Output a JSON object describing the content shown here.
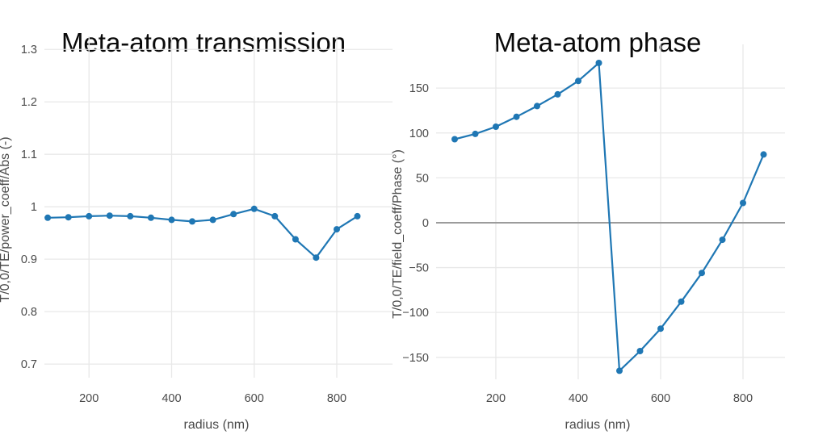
{
  "figure": {
    "background": "#ffffff"
  },
  "colors": {
    "line": "#1f77b4",
    "grid": "#e8e8e8",
    "zeroline": "#9c9c9c",
    "tick_text": "#4a4a4a",
    "axis_label_text": "#4a4a4a",
    "title_text": "#0a0a0a"
  },
  "chart_data": [
    {
      "type": "line",
      "title": "Meta-atom transmission",
      "xlabel": "radius (nm)",
      "ylabel": "T/0,0/TE/power_coeff/Abs (-)",
      "legend": "none",
      "grid": true,
      "markers": true,
      "zeroline": false,
      "line_color": "#1f77b4",
      "x": [
        100,
        150,
        200,
        250,
        300,
        350,
        400,
        450,
        500,
        550,
        600,
        650,
        700,
        750,
        800,
        850
      ],
      "y": [
        0.979,
        0.98,
        0.982,
        0.983,
        0.982,
        0.979,
        0.975,
        0.972,
        0.975,
        0.986,
        0.996,
        0.982,
        0.938,
        0.903,
        0.957,
        0.982
      ],
      "xlim": [
        92,
        935
      ],
      "ylim": [
        0.674,
        1.325
      ],
      "xticks": {
        "values": [
          200,
          400,
          600,
          800
        ],
        "labels": [
          "200",
          "400",
          "600",
          "800"
        ]
      },
      "yticks": {
        "values": [
          0.7,
          0.8,
          0.9,
          1,
          1.1,
          1.2,
          1.3
        ],
        "labels": [
          "0.7",
          "0.8",
          "0.9",
          "1",
          "1.1",
          "1.2",
          "1.3"
        ]
      }
    },
    {
      "type": "line",
      "title": "Meta-atom phase",
      "xlabel": "radius (nm)",
      "ylabel": "T/0,0/TE/field_coeff/Phase (°)",
      "legend": "none",
      "grid": true,
      "markers": true,
      "zeroline": true,
      "line_color": "#1f77b4",
      "x": [
        100,
        150,
        200,
        250,
        300,
        350,
        400,
        450,
        500,
        550,
        600,
        650,
        700,
        750,
        800,
        850
      ],
      "y": [
        93,
        99,
        107,
        118,
        130,
        143,
        158,
        178,
        -165,
        -143,
        -118,
        -88,
        -56,
        -19,
        22,
        76
      ],
      "xlim": [
        55,
        902
      ],
      "ylim": [
        -174.5,
        198.7
      ],
      "xticks": {
        "values": [
          200,
          400,
          600,
          800
        ],
        "labels": [
          "200",
          "400",
          "600",
          "800"
        ]
      },
      "yticks": {
        "values": [
          -150,
          -100,
          -50,
          0,
          50,
          100,
          150
        ],
        "labels": [
          "−150",
          "−100",
          "−50",
          "0",
          "50",
          "100",
          "150"
        ]
      }
    }
  ]
}
